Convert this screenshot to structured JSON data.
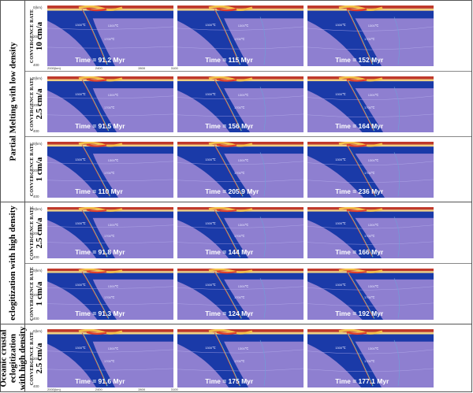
{
  "groups": [
    {
      "title": "Partial Melting with low density",
      "rows": [
        {
          "rate_header": "CONVERGENCE RATE",
          "rate": "10 cm/a",
          "times": [
            "Time = 91.2 Myr",
            "Time = 115 Myr",
            "Time = 152 Myr"
          ]
        },
        {
          "rate_header": "CONVERGENCE RATE",
          "rate": "2.5 cm/a",
          "times": [
            "Time = 91.5 Myr",
            "Time = 156 Myr",
            "Time = 164 Myr"
          ]
        },
        {
          "rate_header": "CONVERGENCE RATE",
          "rate": "1 cm/a",
          "times": [
            "Time = 110 Myr",
            "Time = 205.9 Myr",
            "Time = 236 Myr"
          ]
        }
      ]
    },
    {
      "title_lines": [
        "eclogitization with high density"
      ],
      "rows": [
        {
          "rate_header": "CONVERGENCE RATE",
          "rate": "2.5 cm/a",
          "times": [
            "Time = 91.8 Myr",
            "Time = 144 Myr",
            "Time = 166 Myr"
          ]
        },
        {
          "rate_header": "CONVERGENCE RATE",
          "rate": "1 cm/a",
          "times": [
            "Time = 91.3 Myr",
            "Time = 124 Myr",
            "Time = 192 Myr"
          ]
        }
      ]
    },
    {
      "title_lines": [
        "Oceanic crustal",
        "eclogitization",
        "with high density"
      ],
      "rows": [
        {
          "rate_header": "CONVERGENCE RATE",
          "rate": "2.5 cm/a",
          "times": [
            "Time = 91.6 Myr",
            "Time = 175 Myr",
            "Time = 177.1 Myr"
          ]
        }
      ]
    }
  ],
  "depth_ticks": [
    "0(km)",
    "200",
    "400"
  ],
  "x_ticks": [
    "2000(km)",
    "2400",
    "2800",
    "3100"
  ],
  "isotherms": [
    "1300℃",
    "1300℃",
    "1700℃"
  ],
  "colors": {
    "mantle": "#8e7fd0",
    "lithosphere": "#1a3aa8",
    "crust_hot": "#e0402a",
    "sediment": "#f4c24a",
    "border": "#555555"
  }
}
